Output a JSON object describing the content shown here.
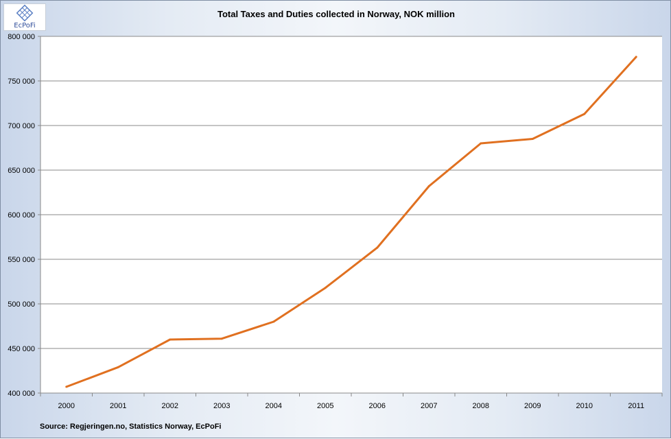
{
  "logo": {
    "text": "EcPoFi"
  },
  "source": "Source: Regjeringen.no,  Statistics Norway, EcPoFi",
  "colors": {
    "line": "#e07020",
    "grid": "#8a8a8a",
    "plot_bg": "#ffffff"
  },
  "chart_data": {
    "type": "line",
    "title": "Total Taxes and Duties collected in Norway, NOK million",
    "xlabel": "",
    "ylabel": "",
    "categories": [
      "2000",
      "2001",
      "2002",
      "2003",
      "2004",
      "2005",
      "2006",
      "2007",
      "2008",
      "2009",
      "2010",
      "2011"
    ],
    "series": [
      {
        "values": [
          407000,
          429000,
          460000,
          461000,
          480000,
          518000,
          563000,
          632000,
          680000,
          685000,
          713000,
          777000
        ]
      }
    ],
    "ylim": [
      400000,
      800000
    ],
    "yticks": [
      400000,
      450000,
      500000,
      550000,
      600000,
      650000,
      700000,
      750000,
      800000
    ],
    "ytick_labels": [
      "400 000",
      "450 000",
      "500 000",
      "550 000",
      "600 000",
      "650 000",
      "700 000",
      "750 000",
      "800 000"
    ],
    "grid": true,
    "legend": "none"
  }
}
